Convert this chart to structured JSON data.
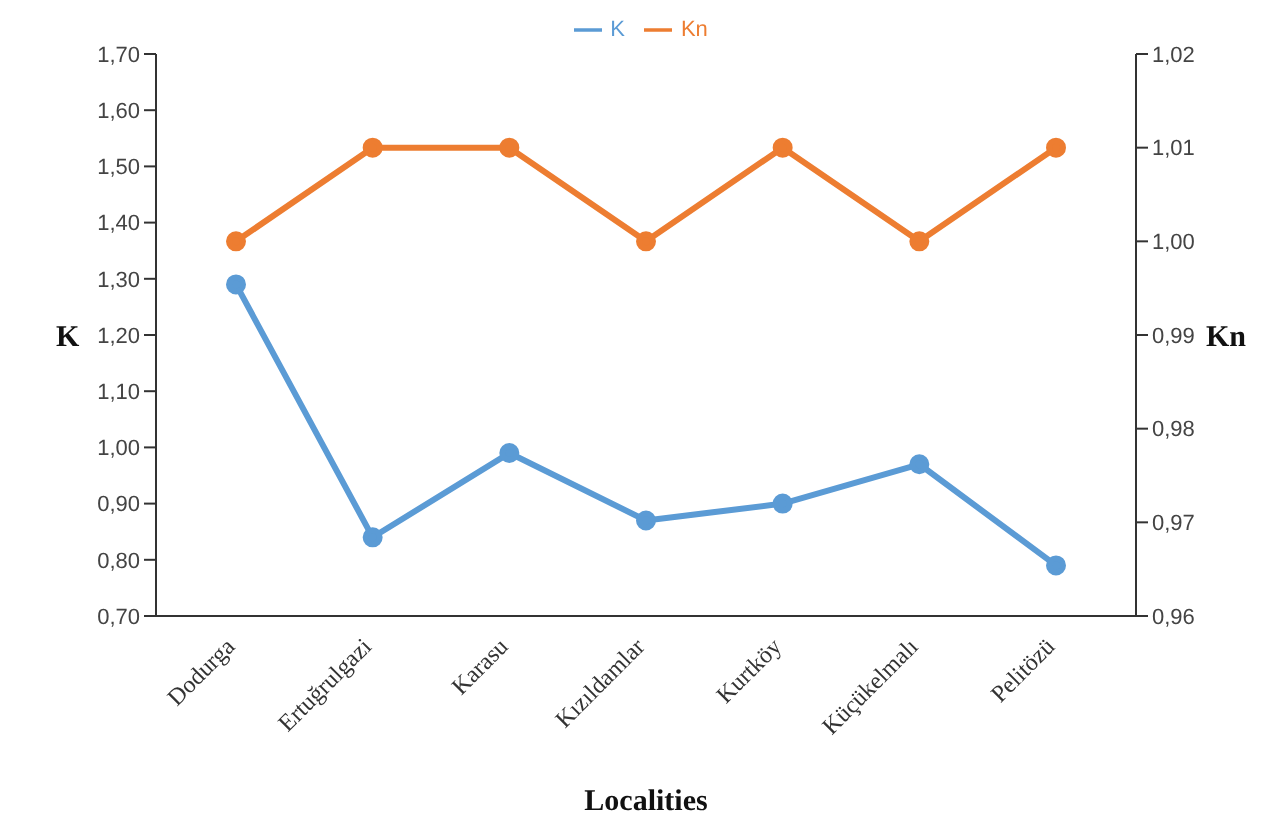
{
  "chart_data": {
    "type": "line",
    "xlabel": "Localities",
    "ylabel": "K",
    "y2label": "Kn",
    "categories": [
      "Dodurga",
      "Ertuğrulgazi",
      "Karasu",
      "Kızıldamlar",
      "Kurtköy",
      "Küçükelmalı",
      "Pelitözü"
    ],
    "series": [
      {
        "name": "K",
        "color": "#5b9bd5",
        "values": [
          1.29,
          0.84,
          0.99,
          0.87,
          0.9,
          0.97,
          0.79
        ]
      },
      {
        "name": "Kn",
        "color": "#ed7d31",
        "axis": "y2",
        "values": [
          1.0,
          1.01,
          1.01,
          1.0,
          1.01,
          1.0,
          1.01
        ]
      }
    ],
    "ylim": [
      0.7,
      1.7
    ],
    "yticks": [
      {
        "value": 0.7,
        "label": "0,70"
      },
      {
        "value": 0.8,
        "label": "0,80"
      },
      {
        "value": 0.9,
        "label": "0,90"
      },
      {
        "value": 1.0,
        "label": "1,00"
      },
      {
        "value": 1.1,
        "label": "1,10"
      },
      {
        "value": 1.2,
        "label": "1,20"
      },
      {
        "value": 1.3,
        "label": "1,30"
      },
      {
        "value": 1.4,
        "label": "1,40"
      },
      {
        "value": 1.5,
        "label": "1,50"
      },
      {
        "value": 1.6,
        "label": "1,60"
      },
      {
        "value": 1.7,
        "label": "1,70"
      }
    ],
    "y2lim": [
      0.96,
      1.02
    ],
    "y2ticks": [
      {
        "value": 0.96,
        "label": "0,96"
      },
      {
        "value": 0.97,
        "label": "0,97"
      },
      {
        "value": 0.98,
        "label": "0,98"
      },
      {
        "value": 0.99,
        "label": "0,99"
      },
      {
        "value": 1.0,
        "label": "1,00"
      },
      {
        "value": 1.01,
        "label": "1,01"
      },
      {
        "value": 1.02,
        "label": "1,02"
      }
    ],
    "grid": false,
    "legend": "top",
    "marker": "circle",
    "line_style": "solid"
  }
}
